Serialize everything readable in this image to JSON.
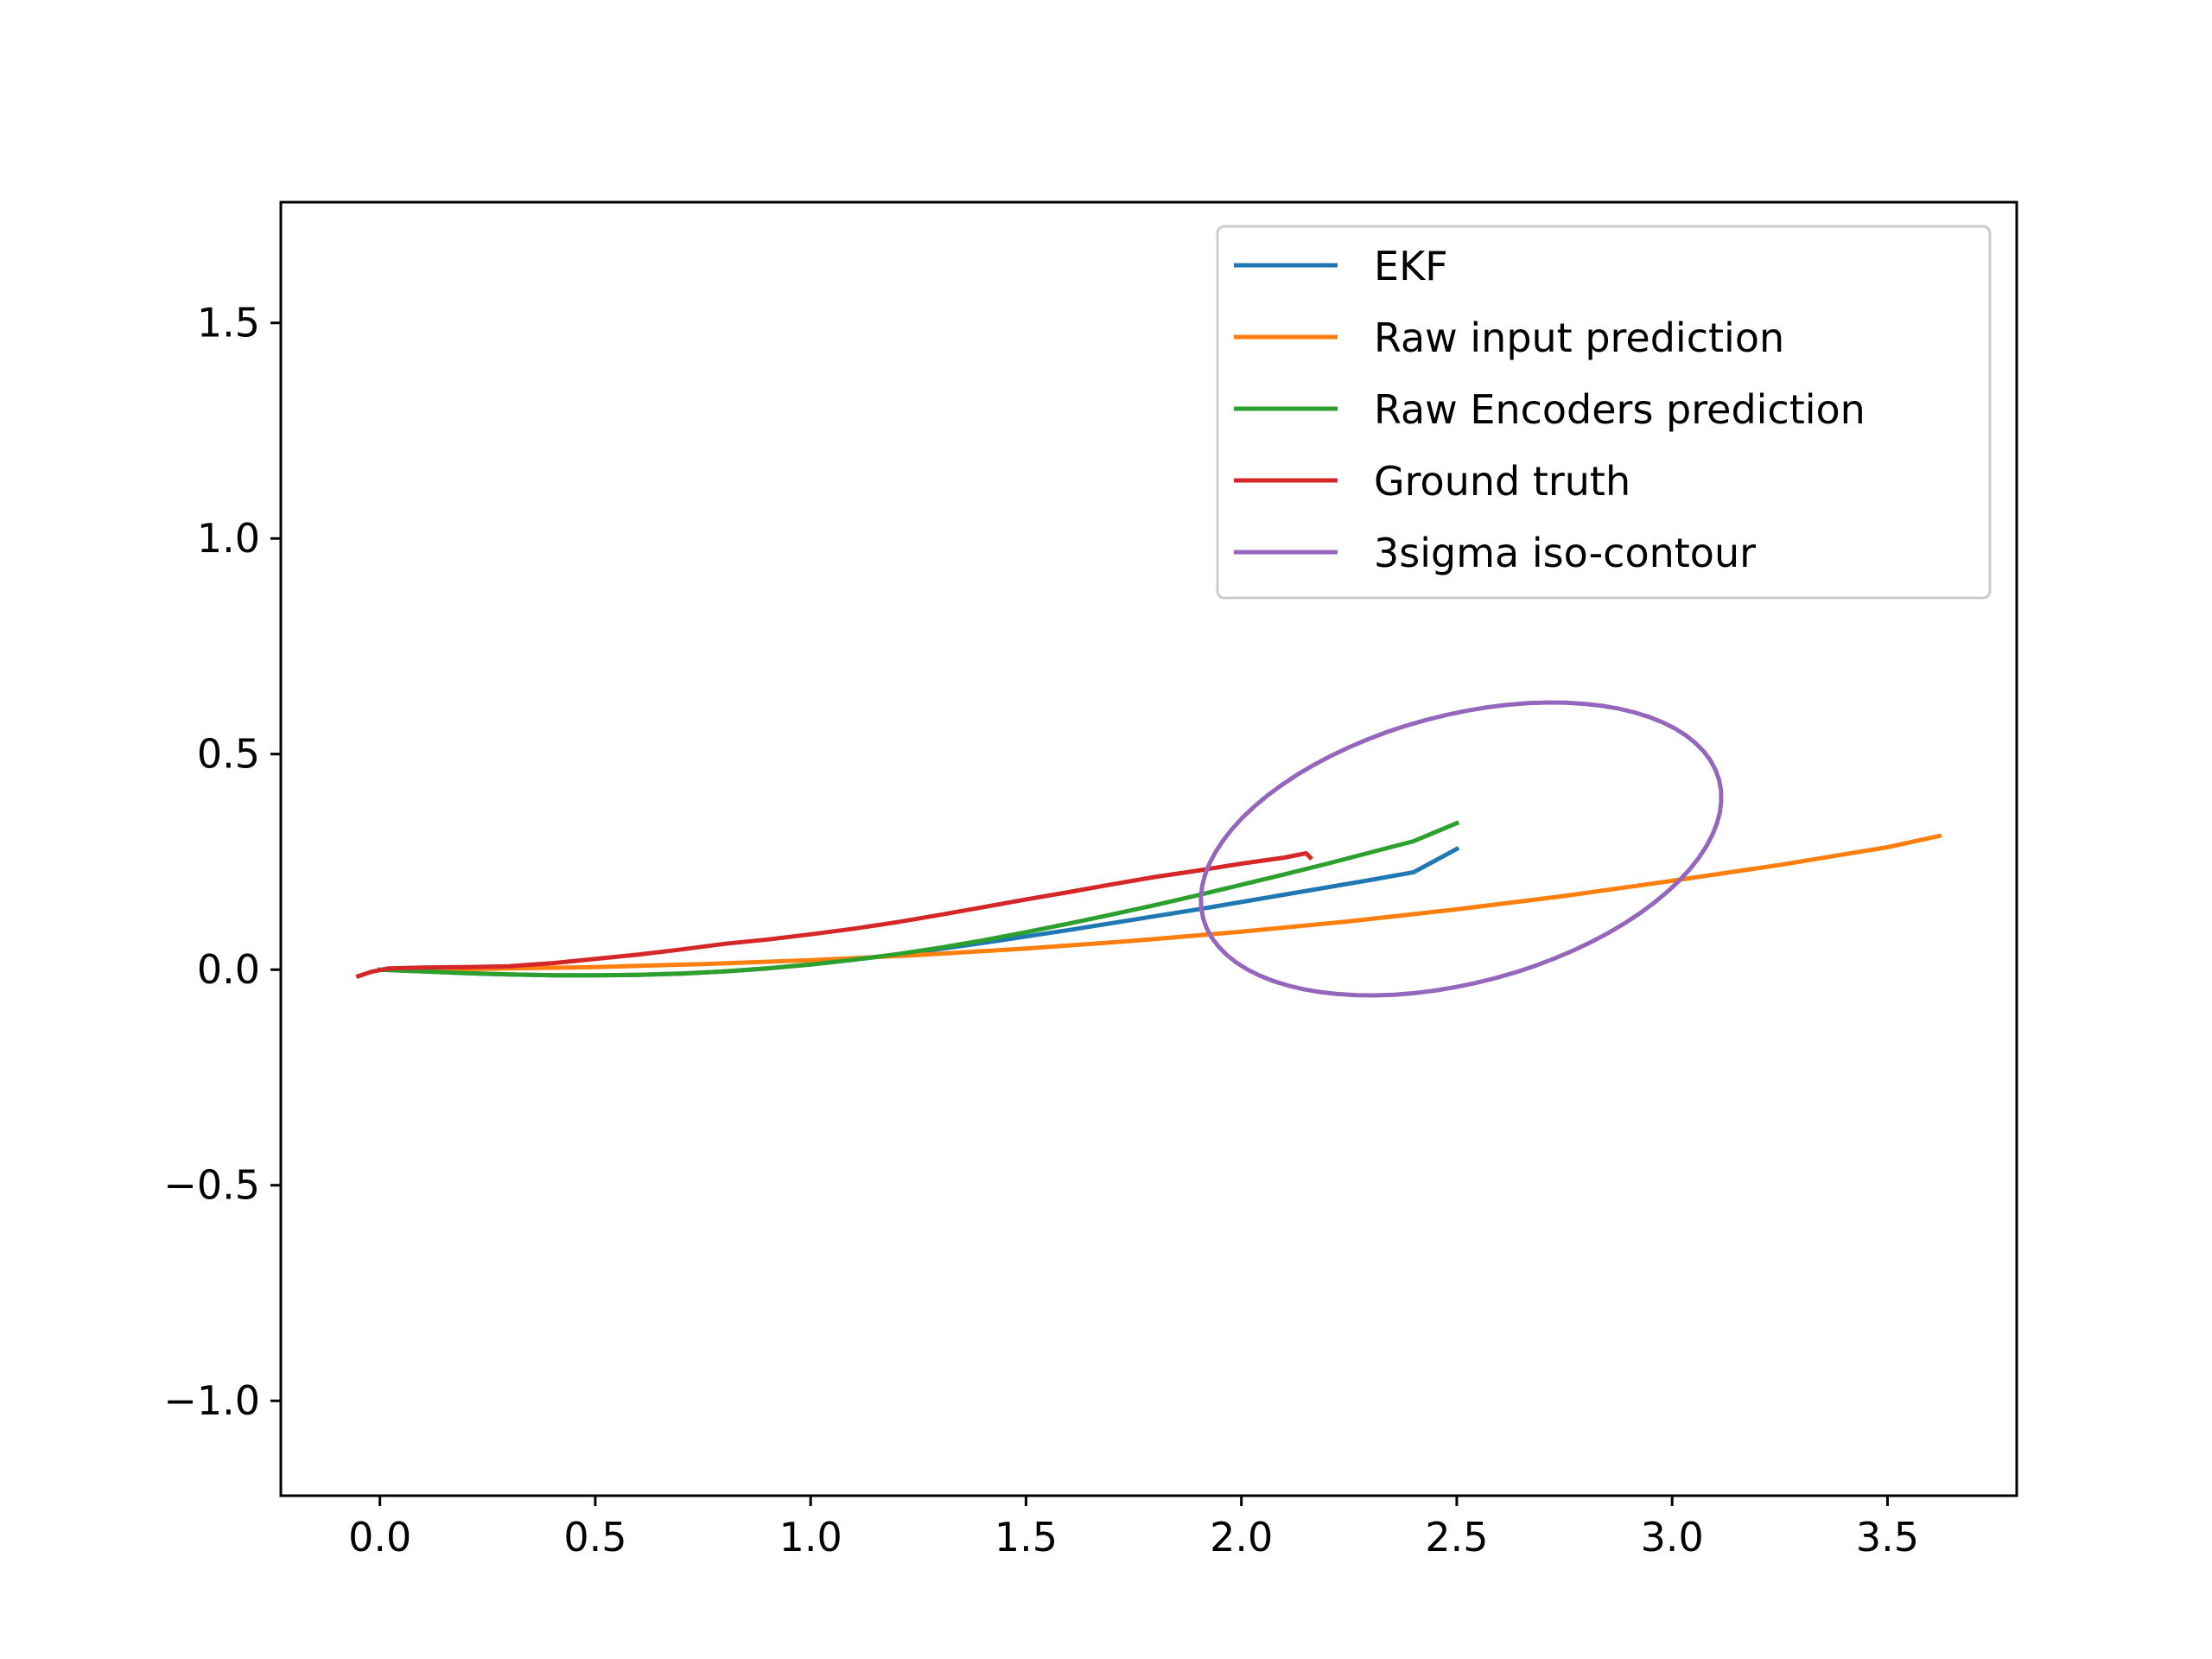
{
  "chart_data": {
    "type": "line",
    "title": "",
    "xlabel": "",
    "ylabel": "",
    "xlim": [
      -0.23,
      3.8
    ],
    "ylim": [
      -1.22,
      1.78
    ],
    "xticks": [
      0.0,
      0.5,
      1.0,
      1.5,
      2.0,
      2.5,
      3.0,
      3.5
    ],
    "xtick_labels": [
      "0.0",
      "0.5",
      "1.0",
      "1.5",
      "2.0",
      "2.5",
      "3.0",
      "3.5"
    ],
    "yticks": [
      -1.0,
      -0.5,
      0.0,
      0.5,
      1.0,
      1.5
    ],
    "ytick_labels": [
      "−1.0",
      "−0.5",
      "0.0",
      "0.5",
      "1.0",
      "1.5"
    ],
    "grid": false,
    "legend": {
      "position": "top-right"
    },
    "series": [
      {
        "name": "EKF",
        "color": "#1f77b4",
        "x": [
          0.0,
          0.1,
          0.2,
          0.3,
          0.4,
          0.5,
          0.6,
          0.7,
          0.8,
          0.9,
          1.0,
          1.1,
          1.2,
          1.3,
          1.4,
          1.5,
          1.6,
          1.7,
          1.8,
          1.9,
          2.0,
          2.1,
          2.2,
          2.3,
          2.4,
          2.5
        ],
        "y": [
          0.0,
          -0.004,
          -0.008,
          -0.011,
          -0.013,
          -0.013,
          -0.012,
          -0.009,
          -0.004,
          0.003,
          0.012,
          0.023,
          0.035,
          0.048,
          0.062,
          0.077,
          0.092,
          0.108,
          0.124,
          0.14,
          0.157,
          0.174,
          0.191,
          0.208,
          0.226,
          0.28
        ]
      },
      {
        "name": "Raw input prediction",
        "color": "#ff7f0e",
        "x": [
          0.0,
          0.25,
          0.5,
          0.75,
          1.0,
          1.25,
          1.5,
          1.75,
          2.0,
          2.25,
          2.5,
          2.75,
          3.0,
          3.25,
          3.5,
          3.62
        ],
        "y": [
          0.0,
          0.002,
          0.006,
          0.013,
          0.022,
          0.034,
          0.049,
          0.067,
          0.088,
          0.112,
          0.14,
          0.171,
          0.206,
          0.243,
          0.284,
          0.31
        ]
      },
      {
        "name": "Raw Encoders prediction",
        "color": "#2ca02c",
        "x": [
          0.0,
          0.1,
          0.2,
          0.3,
          0.4,
          0.5,
          0.6,
          0.7,
          0.8,
          0.9,
          1.0,
          1.1,
          1.2,
          1.3,
          1.4,
          1.5,
          1.6,
          1.7,
          1.8,
          1.9,
          2.0,
          2.1,
          2.2,
          2.3,
          2.4,
          2.5
        ],
        "y": [
          0.0,
          -0.004,
          -0.008,
          -0.011,
          -0.013,
          -0.013,
          -0.012,
          -0.009,
          -0.004,
          0.003,
          0.012,
          0.023,
          0.036,
          0.051,
          0.068,
          0.087,
          0.107,
          0.128,
          0.15,
          0.173,
          0.197,
          0.221,
          0.246,
          0.272,
          0.298,
          0.34
        ]
      },
      {
        "name": "Ground truth",
        "color": "#d62728",
        "x": [
          -0.05,
          -0.02,
          0.02,
          0.1,
          0.2,
          0.3,
          0.4,
          0.5,
          0.6,
          0.7,
          0.8,
          0.9,
          1.0,
          1.1,
          1.2,
          1.3,
          1.4,
          1.5,
          1.6,
          1.7,
          1.8,
          1.9,
          2.0,
          2.1,
          2.15,
          2.16
        ],
        "y": [
          -0.015,
          -0.005,
          0.003,
          0.005,
          0.006,
          0.008,
          0.015,
          0.025,
          0.035,
          0.047,
          0.06,
          0.07,
          0.082,
          0.095,
          0.11,
          0.127,
          0.145,
          0.163,
          0.18,
          0.198,
          0.215,
          0.23,
          0.246,
          0.26,
          0.27,
          0.26
        ]
      },
      {
        "name": "3sigma iso-contour",
        "color": "#9467bd",
        "kind": "ellipse",
        "center": [
          2.51,
          0.28
        ],
        "semi_axes": [
          0.62,
          0.31
        ],
        "rotation_deg": 15
      }
    ]
  }
}
